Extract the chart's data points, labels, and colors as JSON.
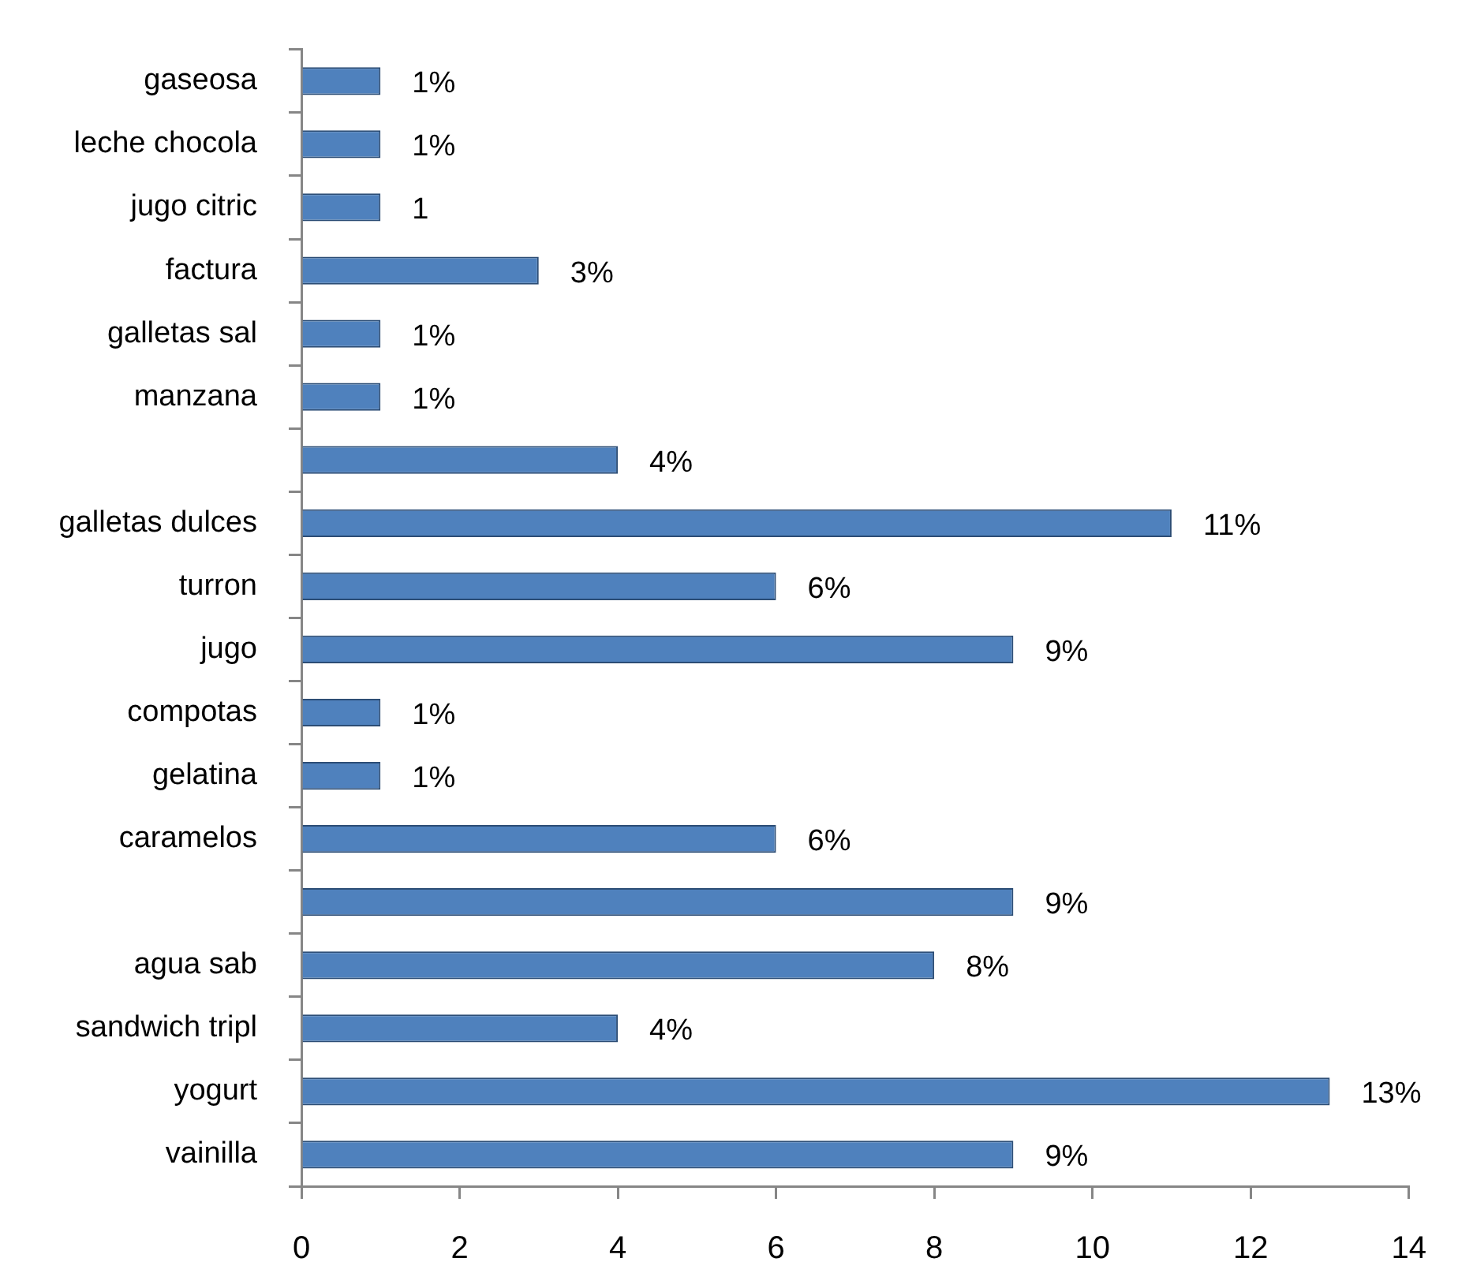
{
  "chart_data": {
    "type": "bar",
    "orientation": "horizontal",
    "categories": [
      "gaseosa",
      "leche chocola",
      "jugo citric",
      "factura",
      "galletas sal",
      "manzana",
      null,
      "galletas dulces",
      "turron",
      "jugo",
      "compotas",
      "gelatina",
      "caramelos",
      null,
      "agua sab",
      "sandwich tripl",
      "yogurt",
      "vainilla"
    ],
    "values": [
      1,
      1,
      1,
      3,
      1,
      1,
      4,
      11,
      6,
      9,
      1,
      1,
      6,
      9,
      8,
      4,
      13,
      9
    ],
    "value_labels": [
      "1%",
      "1%",
      "1",
      "3%",
      "1%",
      "1%",
      "4%",
      "11%",
      "6%",
      "9%",
      "1%",
      "1%",
      "6%",
      "9%",
      "8%",
      "4%",
      "13%",
      "9%"
    ],
    "color": "#4f81bd",
    "xlim": [
      0,
      14
    ],
    "xticks": [
      0,
      2,
      4,
      6,
      8,
      10,
      12,
      14
    ],
    "grid": false,
    "legend": false
  }
}
